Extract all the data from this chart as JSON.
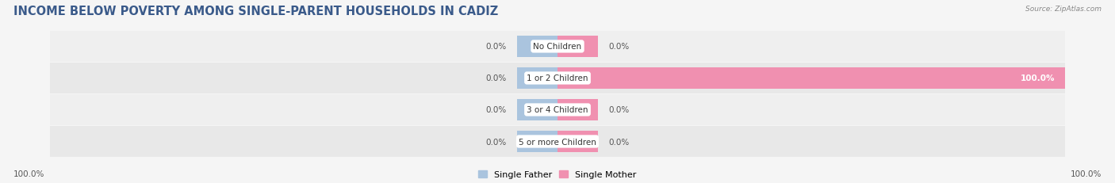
{
  "title": "INCOME BELOW POVERTY AMONG SINGLE-PARENT HOUSEHOLDS IN CADIZ",
  "source": "Source: ZipAtlas.com",
  "categories": [
    "No Children",
    "1 or 2 Children",
    "3 or 4 Children",
    "5 or more Children"
  ],
  "single_father": [
    0.0,
    0.0,
    0.0,
    0.0
  ],
  "single_mother": [
    0.0,
    100.0,
    0.0,
    0.0
  ],
  "color_father": "#aac4de",
  "color_mother": "#f090b0",
  "row_bg_even": "#efefef",
  "row_bg_odd": "#e8e8e8",
  "fig_bg": "#f5f5f5",
  "title_color": "#3a5a8a",
  "source_color": "#888888",
  "value_color": "#555555",
  "title_fontsize": 10.5,
  "label_fontsize": 7.5,
  "value_fontsize": 7.5,
  "legend_fontsize": 8,
  "axis_range": 100,
  "stub_size": 8,
  "left_axis_label": "100.0%",
  "right_axis_label": "100.0%"
}
